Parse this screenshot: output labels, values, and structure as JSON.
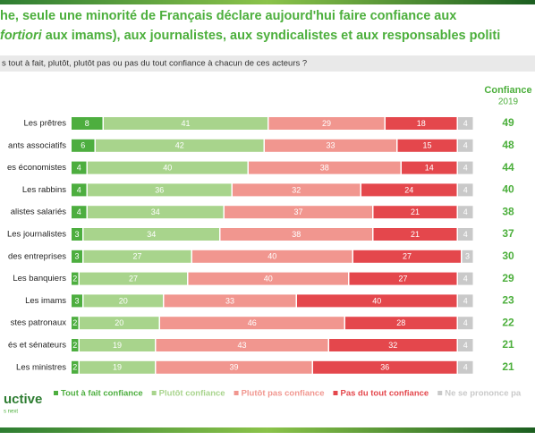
{
  "chart_data": {
    "type": "stacked-bar-horizontal",
    "title_line1": "he, seule une minorité de Français déclare aujourd'hui faire confiance aux",
    "title_line2_italic": "fortiori",
    "title_line2_rest": "aux imams), aux journalistes, aux syndicalistes et aux responsables politi",
    "question": "s tout à fait, plutôt, plutôt pas ou pas du tout confiance à chacun de ces acteurs ?",
    "score_header": "Confiance",
    "score_year": "2019",
    "categories": [
      "Les prêtres",
      "ants associatifs",
      "es économistes",
      "Les rabbins",
      "alistes salariés",
      "Les journalistes",
      "des entreprises",
      "Les banquiers",
      "Les imams",
      "stes patronaux",
      "és et sénateurs",
      "Les ministres"
    ],
    "series": [
      {
        "name": "Tout à fait confiance",
        "color": "#4dae3f",
        "values": [
          8,
          6,
          4,
          4,
          4,
          3,
          3,
          2,
          3,
          2,
          2,
          2
        ]
      },
      {
        "name": "Plutôt confiance",
        "color": "#a8d48c",
        "values": [
          41,
          42,
          40,
          36,
          34,
          34,
          27,
          27,
          20,
          20,
          19,
          19
        ]
      },
      {
        "name": "Plutôt pas confiance",
        "color": "#f1968f",
        "values": [
          29,
          33,
          38,
          32,
          37,
          38,
          40,
          40,
          33,
          46,
          43,
          39
        ]
      },
      {
        "name": "Pas du tout confiance",
        "color": "#e4474c",
        "values": [
          18,
          15,
          14,
          24,
          21,
          21,
          27,
          27,
          40,
          28,
          32,
          36
        ]
      },
      {
        "name": "Ne se prononce pa",
        "color": "#c9c9c9",
        "values": [
          4,
          4,
          4,
          4,
          4,
          4,
          3,
          4,
          4,
          4,
          4,
          4
        ]
      }
    ],
    "scores": [
      49,
      48,
      44,
      40,
      38,
      37,
      30,
      29,
      23,
      22,
      21,
      21
    ],
    "xlim": [
      0,
      100
    ],
    "logo": "uctive",
    "logo_sub": "s next"
  }
}
